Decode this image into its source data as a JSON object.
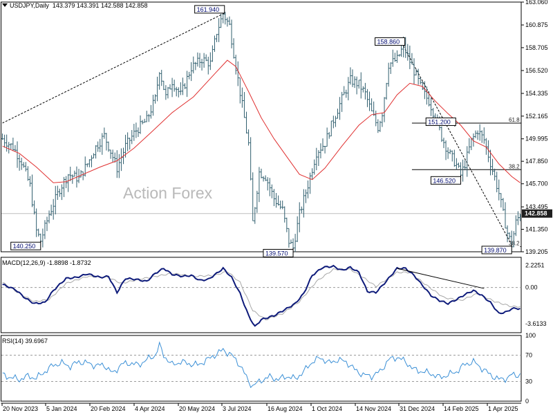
{
  "header": {
    "symbol": "USDJPY,Daily",
    "ohlc": "143.379 143.391 142.588 142.858",
    "macd_label": "MACD(12,26,9) -1.8898 -1.8732",
    "rsi_label": "RSI(14) 39.6967"
  },
  "watermark": "Action Forex",
  "colors": {
    "candles": "#2f5e6e",
    "ma": "#e03030",
    "macd": "#0d1a7a",
    "signal": "#a8a8a8",
    "rsi": "#3a8fd6",
    "current_price_bg": "#1f1f1f"
  },
  "chart_data": [
    {
      "type": "candlestick",
      "title": "USDJPY,Daily",
      "x_tick_labels": [
        "20 Nov 2023",
        "5 Jan 2024",
        "20 Feb 2024",
        "4 Apr 2024",
        "20 May 2024",
        "3 Jul 2024",
        "16 Aug 2024",
        "1 Oct 2024",
        "14 Nov 2024",
        "31 Dec 2024",
        "14 Feb 2025",
        "1 Apr 2025"
      ],
      "y_ticks": [
        "163.060",
        "160.875",
        "158.705",
        "156.520",
        "154.335",
        "152.165",
        "149.995",
        "147.850",
        "145.700",
        "143.495",
        "141.350",
        "139.205"
      ],
      "ylim": [
        139.205,
        163.06
      ],
      "current_price": "142.858",
      "price_path": [
        [
          0,
          150.0
        ],
        [
          5,
          149.2
        ],
        [
          9,
          147.8
        ],
        [
          13,
          145.5
        ],
        [
          16,
          141.2
        ],
        [
          18,
          140.25
        ],
        [
          22,
          142.8
        ],
        [
          27,
          145.2
        ],
        [
          31,
          146.6
        ],
        [
          36,
          146.2
        ],
        [
          40,
          147.6
        ],
        [
          44,
          149.2
        ],
        [
          48,
          150.3
        ],
        [
          51,
          148.8
        ],
        [
          54,
          147.2
        ],
        [
          58,
          149.3
        ],
        [
          63,
          150.8
        ],
        [
          68,
          151.8
        ],
        [
          72,
          153.8
        ],
        [
          74,
          156.6
        ],
        [
          77,
          154.0
        ],
        [
          80,
          155.5
        ],
        [
          84,
          154.2
        ],
        [
          89,
          156.8
        ],
        [
          94,
          157.6
        ],
        [
          98,
          157.2
        ],
        [
          101,
          160.2
        ],
        [
          104,
          161.94
        ],
        [
          107,
          160.8
        ],
        [
          110,
          156.9
        ],
        [
          113,
          153.2
        ],
        [
          116,
          149.5
        ],
        [
          118,
          142.0
        ],
        [
          121,
          146.8
        ],
        [
          124,
          146.4
        ],
        [
          128,
          144.3
        ],
        [
          132,
          143.2
        ],
        [
          135,
          140.2
        ],
        [
          137,
          139.57
        ],
        [
          140,
          142.8
        ],
        [
          144,
          145.6
        ],
        [
          148,
          148.7
        ],
        [
          152,
          149.6
        ],
        [
          156,
          151.8
        ],
        [
          160,
          153.8
        ],
        [
          164,
          155.6
        ],
        [
          168,
          155.2
        ],
        [
          171,
          154.3
        ],
        [
          174,
          152.5
        ],
        [
          177,
          151.1
        ],
        [
          179,
          152.5
        ],
        [
          182,
          157.1
        ],
        [
          186,
          157.6
        ],
        [
          189,
          158.86
        ],
        [
          192,
          157.4
        ],
        [
          195,
          156.0
        ],
        [
          198,
          154.5
        ],
        [
          201,
          153.6
        ],
        [
          204,
          152.1
        ],
        [
          207,
          150.2
        ],
        [
          210,
          148.8
        ],
        [
          214,
          147.5
        ],
        [
          216,
          146.52
        ],
        [
          218,
          147.6
        ],
        [
          221,
          149.8
        ],
        [
          224,
          150.8
        ],
        [
          227,
          149.9
        ],
        [
          230,
          147.7
        ],
        [
          232,
          146.3
        ],
        [
          234,
          144.8
        ],
        [
          236,
          142.8
        ],
        [
          238,
          141.0
        ],
        [
          240,
          139.87
        ],
        [
          242,
          142.0
        ],
        [
          244,
          142.86
        ]
      ],
      "ma_path": [
        [
          0,
          149.3
        ],
        [
          8,
          148.6
        ],
        [
          16,
          147.3
        ],
        [
          24,
          145.8
        ],
        [
          30,
          145.9
        ],
        [
          38,
          146.6
        ],
        [
          46,
          147.3
        ],
        [
          54,
          147.9
        ],
        [
          62,
          149.1
        ],
        [
          70,
          150.6
        ],
        [
          80,
          152.5
        ],
        [
          90,
          154.0
        ],
        [
          100,
          156.2
        ],
        [
          106,
          157.5
        ],
        [
          110,
          156.9
        ],
        [
          116,
          154.5
        ],
        [
          122,
          152.0
        ],
        [
          128,
          150.0
        ],
        [
          134,
          148.3
        ],
        [
          140,
          146.6
        ],
        [
          146,
          146.1
        ],
        [
          152,
          147.2
        ],
        [
          160,
          149.3
        ],
        [
          168,
          151.3
        ],
        [
          174,
          152.3
        ],
        [
          180,
          152.5
        ],
        [
          186,
          154.2
        ],
        [
          192,
          155.3
        ],
        [
          198,
          155.0
        ],
        [
          204,
          153.6
        ],
        [
          210,
          152.4
        ],
        [
          216,
          151.3
        ],
        [
          222,
          149.8
        ],
        [
          228,
          149.2
        ],
        [
          234,
          147.6
        ],
        [
          240,
          146.4
        ],
        [
          244,
          145.8
        ]
      ],
      "trendlines": [
        {
          "from": [
            0,
            151.5
          ],
          "to": [
            104,
            161.94
          ]
        },
        {
          "from": [
            189,
            158.86
          ],
          "to": [
            240,
            139.87
          ]
        }
      ],
      "fib_levels": [
        {
          "label": "61.8",
          "value": 151.5,
          "from_x": 193
        },
        {
          "label": "38.2",
          "value": 147.05,
          "from_x": 193
        },
        {
          "label": "38.2",
          "value": 139.7,
          "from_x": 244
        }
      ],
      "annotations": [
        {
          "text": "161.940",
          "x": 104,
          "y": 161.94
        },
        {
          "text": "140.250",
          "x": 18,
          "y": 140.25
        },
        {
          "text": "139.570",
          "x": 137,
          "y": 139.57
        },
        {
          "text": "158.860",
          "x": 189,
          "y": 158.86
        },
        {
          "text": "151.200",
          "x": 213,
          "y": 151.2
        },
        {
          "text": "146.520",
          "x": 216,
          "y": 146.52
        },
        {
          "text": "139.870",
          "x": 240,
          "y": 139.87
        }
      ]
    },
    {
      "type": "line",
      "title": "MACD(12,26,9) -1.8898 -1.8732",
      "y_ticks": [
        "2.2251",
        "0.00",
        "-3.6133"
      ],
      "ylim": [
        -4.5,
        3.0
      ],
      "series": [
        {
          "name": "MACD",
          "values": [
            [
              0,
              0.3
            ],
            [
              6,
              -0.2
            ],
            [
              11,
              -1.1
            ],
            [
              15,
              -1.6
            ],
            [
              20,
              -1.5
            ],
            [
              24,
              -0.3
            ],
            [
              30,
              0.9
            ],
            [
              35,
              1.0
            ],
            [
              40,
              1.35
            ],
            [
              46,
              1.0
            ],
            [
              50,
              1.1
            ],
            [
              54,
              -0.5
            ],
            [
              58,
              0.9
            ],
            [
              63,
              0.8
            ],
            [
              68,
              0.6
            ],
            [
              72,
              1.4
            ],
            [
              76,
              1.9
            ],
            [
              80,
              1.3
            ],
            [
              85,
              1.1
            ],
            [
              89,
              1.2
            ],
            [
              93,
              0.7
            ],
            [
              97,
              0.8
            ],
            [
              101,
              1.4
            ],
            [
              104,
              1.9
            ],
            [
              108,
              1.0
            ],
            [
              112,
              -0.6
            ],
            [
              116,
              -2.8
            ],
            [
              119,
              -3.9
            ],
            [
              122,
              -3.2
            ],
            [
              128,
              -2.8
            ],
            [
              134,
              -2.1
            ],
            [
              138,
              -1.6
            ],
            [
              142,
              -0.6
            ],
            [
              146,
              1.2
            ],
            [
              151,
              2.0
            ],
            [
              156,
              2.1
            ],
            [
              160,
              1.7
            ],
            [
              164,
              2.0
            ],
            [
              168,
              1.5
            ],
            [
              172,
              -0.4
            ],
            [
              176,
              -0.5
            ],
            [
              180,
              0.4
            ],
            [
              186,
              1.9
            ],
            [
              190,
              1.9
            ],
            [
              194,
              1.2
            ],
            [
              198,
              0.2
            ],
            [
              202,
              -0.8
            ],
            [
              206,
              -1.3
            ],
            [
              210,
              -1.6
            ],
            [
              214,
              -1.2
            ],
            [
              218,
              -0.7
            ],
            [
              222,
              -0.3
            ],
            [
              226,
              -0.8
            ],
            [
              230,
              -1.5
            ],
            [
              234,
              -2.6
            ],
            [
              238,
              -2.4
            ],
            [
              240,
              -2.1
            ]
          ]
        },
        {
          "name": "Signal",
          "values": [
            [
              0,
              0.5
            ],
            [
              8,
              -0.6
            ],
            [
              15,
              -1.4
            ],
            [
              22,
              -1.2
            ],
            [
              30,
              0.4
            ],
            [
              40,
              1.1
            ],
            [
              50,
              1.0
            ],
            [
              56,
              0.4
            ],
            [
              64,
              0.8
            ],
            [
              72,
              1.1
            ],
            [
              80,
              1.4
            ],
            [
              90,
              1.1
            ],
            [
              100,
              1.2
            ],
            [
              106,
              1.6
            ],
            [
              112,
              0.5
            ],
            [
              118,
              -2.3
            ],
            [
              124,
              -3.2
            ],
            [
              132,
              -2.6
            ],
            [
              140,
              -1.4
            ],
            [
              148,
              0.6
            ],
            [
              156,
              1.8
            ],
            [
              164,
              1.8
            ],
            [
              170,
              1.0
            ],
            [
              176,
              0.1
            ],
            [
              186,
              1.5
            ],
            [
              192,
              1.5
            ],
            [
              200,
              0.2
            ],
            [
              208,
              -1.0
            ],
            [
              216,
              -1.3
            ],
            [
              224,
              -0.6
            ],
            [
              232,
              -1.4
            ],
            [
              240,
              -1.9
            ]
          ]
        }
      ],
      "trendline": {
        "from": [
          186,
          1.9
        ],
        "to": [
          227,
          -0.1
        ]
      }
    },
    {
      "type": "line",
      "title": "RSI(14) 39.6967",
      "y_ticks": [
        "100",
        "70",
        "30",
        "0"
      ],
      "ylim": [
        0,
        100
      ],
      "series": [
        {
          "name": "RSI",
          "values": [
            [
              0,
              40
            ],
            [
              4,
              36
            ],
            [
              8,
              33
            ],
            [
              12,
              38
            ],
            [
              16,
              35
            ],
            [
              20,
              45
            ],
            [
              24,
              55
            ],
            [
              28,
              58
            ],
            [
              32,
              53
            ],
            [
              36,
              60
            ],
            [
              40,
              58
            ],
            [
              44,
              54
            ],
            [
              48,
              55
            ],
            [
              52,
              42
            ],
            [
              56,
              56
            ],
            [
              60,
              58
            ],
            [
              64,
              55
            ],
            [
              68,
              63
            ],
            [
              72,
              70
            ],
            [
              74,
              85
            ],
            [
              76,
              70
            ],
            [
              80,
              55
            ],
            [
              84,
              60
            ],
            [
              88,
              57
            ],
            [
              92,
              55
            ],
            [
              96,
              62
            ],
            [
              100,
              70
            ],
            [
              104,
              78
            ],
            [
              108,
              70
            ],
            [
              112,
              55
            ],
            [
              116,
              30
            ],
            [
              118,
              23
            ],
            [
              122,
              32
            ],
            [
              126,
              37
            ],
            [
              130,
              33
            ],
            [
              134,
              38
            ],
            [
              138,
              34
            ],
            [
              142,
              45
            ],
            [
              146,
              60
            ],
            [
              150,
              66
            ],
            [
              154,
              58
            ],
            [
              158,
              63
            ],
            [
              162,
              60
            ],
            [
              166,
              48
            ],
            [
              170,
              40
            ],
            [
              174,
              38
            ],
            [
              178,
              45
            ],
            [
              182,
              63
            ],
            [
              186,
              67
            ],
            [
              190,
              60
            ],
            [
              194,
              48
            ],
            [
              198,
              45
            ],
            [
              202,
              42
            ],
            [
              206,
              36
            ],
            [
              210,
              40
            ],
            [
              214,
              45
            ],
            [
              218,
              56
            ],
            [
              222,
              60
            ],
            [
              226,
              50
            ],
            [
              230,
              40
            ],
            [
              234,
              33
            ],
            [
              238,
              35
            ],
            [
              240,
              40
            ]
          ]
        }
      ]
    }
  ]
}
